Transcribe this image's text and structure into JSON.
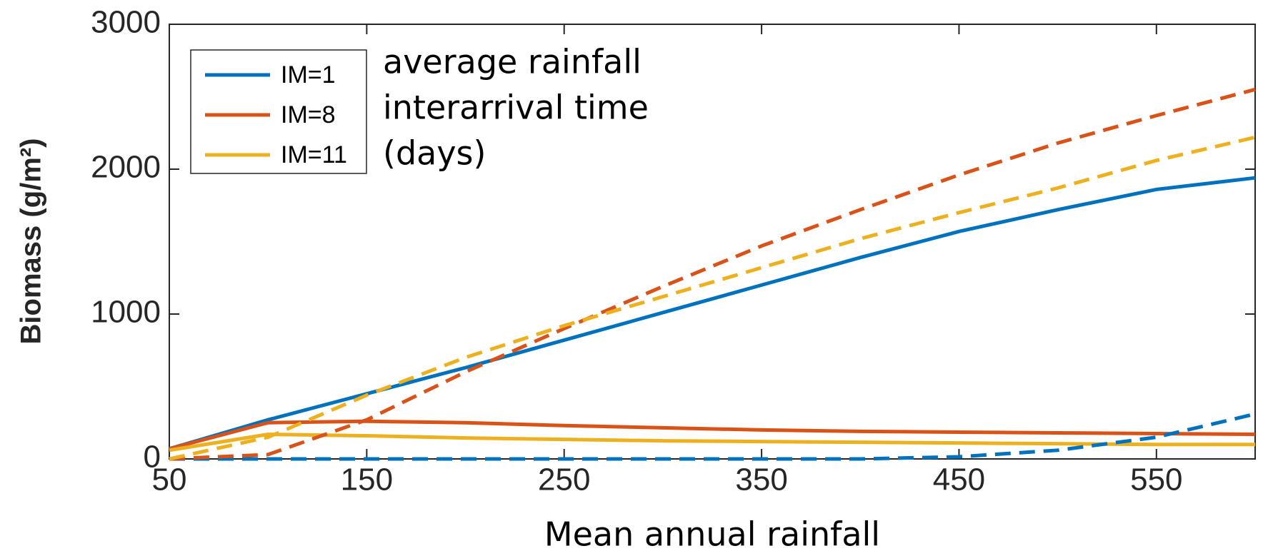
{
  "chart_data": {
    "type": "line",
    "x_label": "Mean annual rainfall",
    "y_label": "Biomass (g/m²)",
    "annotation": [
      "average rainfall",
      "interarrival time",
      "(days)"
    ],
    "x": [
      50,
      100,
      150,
      200,
      250,
      300,
      350,
      400,
      450,
      500,
      550,
      600
    ],
    "xlim": [
      50,
      600
    ],
    "xticks": [
      50,
      150,
      250,
      350,
      450,
      550
    ],
    "ylim": [
      0,
      3000
    ],
    "yticks": [
      0,
      1000,
      2000,
      3000
    ],
    "legend": "upper left",
    "series": [
      {
        "name": "IM=1",
        "color": "#0072bd",
        "values": [
          70,
          270,
          450,
          630,
          820,
          1010,
          1200,
          1390,
          1570,
          1720,
          1860,
          1940
        ]
      },
      {
        "name": "IM=8",
        "color": "#d95319",
        "values": [
          70,
          250,
          260,
          250,
          230,
          215,
          200,
          190,
          185,
          180,
          175,
          170
        ]
      },
      {
        "name": "IM=11",
        "color": "#edb120",
        "values": [
          60,
          170,
          160,
          145,
          135,
          125,
          120,
          115,
          110,
          105,
          100,
          100
        ]
      },
      {
        "color": "#0072bd",
        "dashed": true,
        "values": [
          0,
          0,
          0,
          0,
          0,
          0,
          0,
          0,
          15,
          60,
          150,
          310
        ]
      },
      {
        "color": "#d95319",
        "dashed": true,
        "values": [
          0,
          30,
          270,
          600,
          900,
          1190,
          1470,
          1720,
          1960,
          2180,
          2370,
          2550
        ]
      },
      {
        "color": "#edb120",
        "dashed": true,
        "values": [
          0,
          150,
          440,
          700,
          920,
          1120,
          1320,
          1520,
          1700,
          1870,
          2060,
          2220
        ]
      }
    ]
  }
}
